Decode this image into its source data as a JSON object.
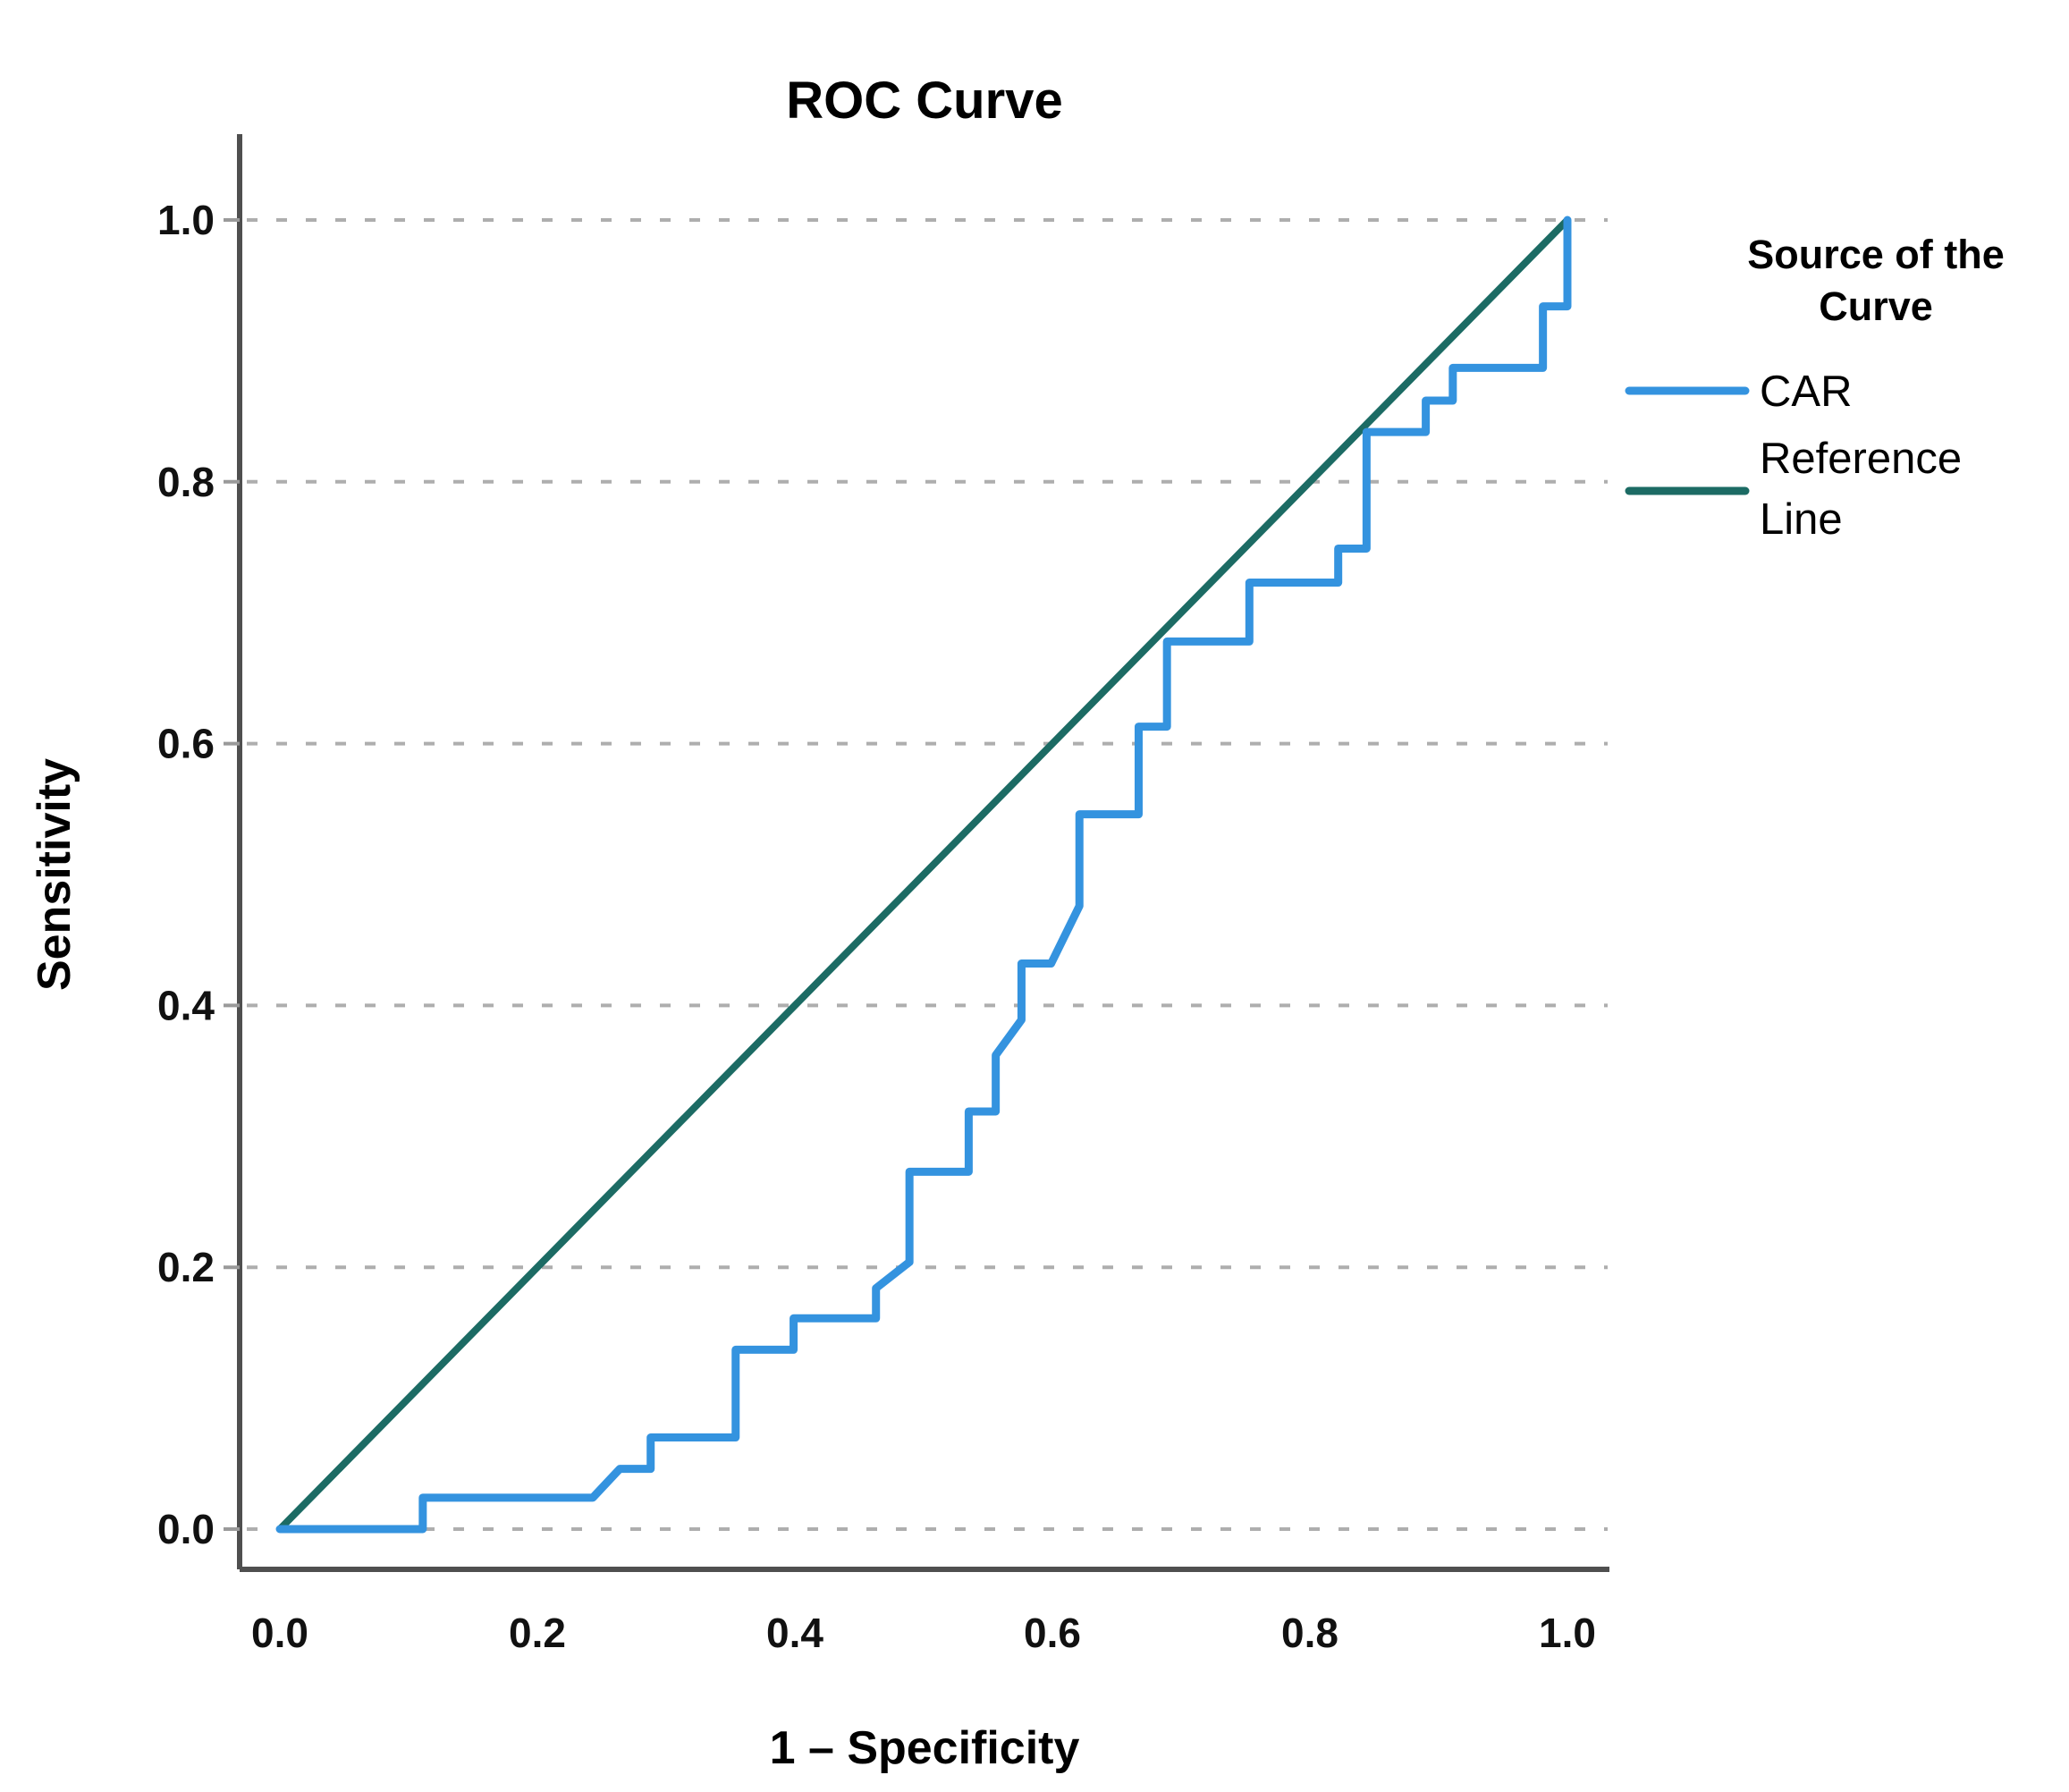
{
  "figure": {
    "title": "ROC Curve",
    "x_label": "1 – Specificity",
    "y_label": "Sensitivity"
  },
  "legend": {
    "title_lines": [
      "Source of the",
      "Curve"
    ],
    "items": [
      {
        "label_lines": [
          "CAR"
        ],
        "color": "#3493DF"
      },
      {
        "label_lines": [
          "Reference",
          "Line"
        ],
        "color": "#1C6B64"
      }
    ]
  },
  "colors": {
    "car_curve": "#3493DF",
    "reference_line": "#1C6B64",
    "gridline": "#aeaeae",
    "axis_frame": "#4f4f4f",
    "text": "#000000"
  },
  "chart_data": {
    "type": "line",
    "title": "ROC Curve",
    "xlabel": "1 – Specificity",
    "ylabel": "Sensitivity",
    "xlim": [
      0.0,
      1.0
    ],
    "ylim": [
      0.0,
      1.0
    ],
    "x_ticks": [
      0.0,
      0.2,
      0.4,
      0.6,
      0.8,
      1.0
    ],
    "y_ticks": [
      0.0,
      0.2,
      0.4,
      0.6,
      0.8,
      1.0
    ],
    "grid": "horizontal-dashed",
    "legend_position": "right",
    "legend_title": "Source of the Curve",
    "series": [
      {
        "name": "CAR",
        "color": "#3493DF",
        "stroke_width": 9,
        "points": [
          [
            0.0,
            0.0
          ],
          [
            0.111,
            0.0
          ],
          [
            0.111,
            0.024
          ],
          [
            0.243,
            0.024
          ],
          [
            0.264,
            0.046
          ],
          [
            0.288,
            0.046
          ],
          [
            0.288,
            0.07
          ],
          [
            0.354,
            0.07
          ],
          [
            0.354,
            0.137
          ],
          [
            0.399,
            0.137
          ],
          [
            0.399,
            0.161
          ],
          [
            0.463,
            0.161
          ],
          [
            0.463,
            0.184
          ],
          [
            0.489,
            0.204
          ],
          [
            0.489,
            0.273
          ],
          [
            0.535,
            0.273
          ],
          [
            0.535,
            0.319
          ],
          [
            0.556,
            0.319
          ],
          [
            0.556,
            0.362
          ],
          [
            0.576,
            0.389
          ],
          [
            0.576,
            0.432
          ],
          [
            0.599,
            0.432
          ],
          [
            0.621,
            0.476
          ],
          [
            0.621,
            0.546
          ],
          [
            0.667,
            0.546
          ],
          [
            0.667,
            0.613
          ],
          [
            0.689,
            0.613
          ],
          [
            0.689,
            0.678
          ],
          [
            0.753,
            0.678
          ],
          [
            0.753,
            0.723
          ],
          [
            0.822,
            0.723
          ],
          [
            0.822,
            0.749
          ],
          [
            0.844,
            0.749
          ],
          [
            0.844,
            0.838
          ],
          [
            0.89,
            0.838
          ],
          [
            0.89,
            0.862
          ],
          [
            0.911,
            0.862
          ],
          [
            0.911,
            0.887
          ],
          [
            0.981,
            0.887
          ],
          [
            0.981,
            0.934
          ],
          [
            1.0,
            0.934
          ],
          [
            1.0,
            1.0
          ]
        ]
      },
      {
        "name": "Reference Line",
        "color": "#1C6B64",
        "stroke_width": 8,
        "points": [
          [
            0.0,
            0.0
          ],
          [
            1.0,
            1.0
          ]
        ]
      }
    ]
  }
}
